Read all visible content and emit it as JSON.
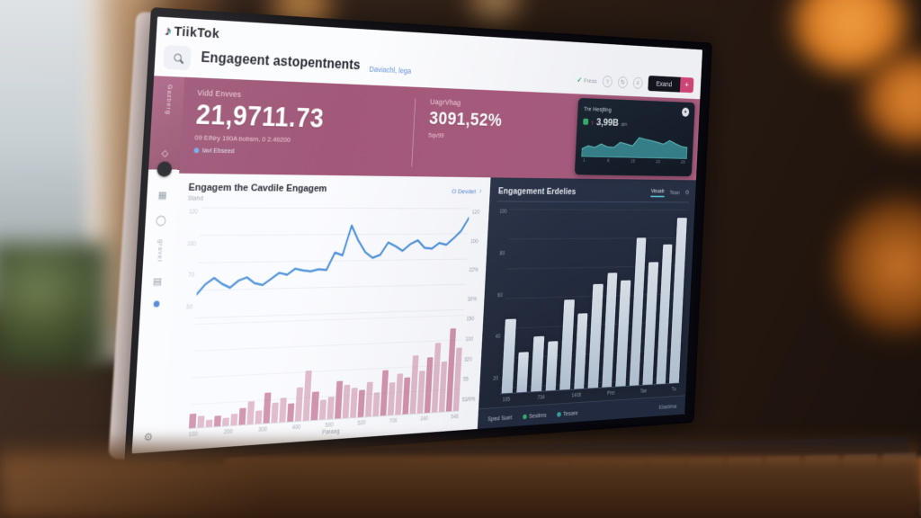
{
  "brand": {
    "name": "TiikTok",
    "note_glyph": "♪"
  },
  "header": {
    "search_value": "Engageent astopentnents",
    "search_hint": "Daviachl, lega",
    "status_check": "✓",
    "status_label": "Fress",
    "icon1": "?",
    "icon2": "↻",
    "icon3": "≡",
    "export_label": "Exand",
    "export_plus": "+"
  },
  "sidebar": {
    "vertical_label": "Gazberg",
    "diamond_glyph": "◇",
    "grid_glyph": "▦",
    "clock_glyph": "◯",
    "vertical_label2": "gravel",
    "list_glyph": "▤",
    "gear_glyph": "⚙"
  },
  "stats": {
    "left": {
      "label": "Vidd Envves",
      "value": "21,9711.73",
      "sub": "09 ElNry 190A bobsm, 0 2.49200",
      "badge": "lavl Ebseed"
    },
    "right": {
      "label": "UagrVhag",
      "value": "3091,52%",
      "sub": "5qv99"
    }
  },
  "mini_card": {
    "title": "Tre Hesjting",
    "circle_glyph": "✦",
    "delta": "↑",
    "value": "3,99B",
    "suffix": "am"
  },
  "line_card": {
    "title": "Engagem the Cavdile Engagem",
    "subtitle": "Stahd",
    "link": "O Devdet",
    "chevron": "›",
    "axis_title": "Paraag"
  },
  "dark_card": {
    "title": "Engagement Erdelies",
    "tab_active": "Veuab",
    "tab2": "Tean",
    "gear_glyph": "⚙"
  },
  "footer": {
    "left": "Sped Suet",
    "legend_green": "Seslims",
    "legend_teal": "Tesare",
    "right": "Elastima"
  },
  "colors": {
    "panel_pink": "#a85a7c",
    "line_blue": "#4a90d9",
    "bar_pink": "#c06a8d",
    "teal": "#3aa8a8",
    "green": "#35b36a",
    "button_pink": "#d8487a",
    "dark_card_bg": "#232c3f"
  },
  "chart_data": [
    {
      "type": "line",
      "title": "Engagem the Cavdile Engagem",
      "y_labels_left": [
        "120",
        "100",
        "70",
        "50"
      ],
      "y_labels_right": [
        "120",
        "100",
        "22%",
        "30%"
      ],
      "values": [
        20,
        30,
        36,
        30,
        26,
        33,
        36,
        30,
        28,
        34,
        40,
        38,
        44,
        42,
        41,
        43,
        42,
        60,
        57,
        88,
        72,
        60,
        54,
        57,
        70,
        66,
        61,
        68,
        72,
        64,
        63,
        69,
        67,
        74,
        82,
        96
      ],
      "ylim": [
        0,
        100
      ],
      "grid": true,
      "legend": "none"
    },
    {
      "type": "bar",
      "title": "Paraag",
      "x_labels": [
        "100",
        "200",
        "300",
        "400",
        "500",
        "520",
        "700",
        "340",
        "548"
      ],
      "y_labels_right": [
        "150",
        "100",
        "320",
        "55",
        "53/9%"
      ],
      "values": [
        14,
        11,
        7,
        10,
        8,
        11,
        16,
        22,
        13,
        30,
        20,
        24,
        18,
        33,
        50,
        28,
        20,
        22,
        38,
        33,
        30,
        27,
        35,
        24,
        46,
        33,
        42,
        38,
        60,
        44,
        57,
        72,
        52,
        86,
        66
      ],
      "ylim": [
        0,
        100
      ],
      "grid": true
    },
    {
      "type": "bar",
      "title": "Engagement Erdelies",
      "y_labels": [
        "100",
        "80",
        "60",
        "40",
        "20"
      ],
      "x_labels": [
        "105",
        "734",
        "1408",
        "Prel",
        "Tae",
        "Tu"
      ],
      "values": [
        40,
        22,
        30,
        27,
        50,
        42,
        58,
        64,
        60,
        84,
        70,
        80,
        95
      ],
      "ylim": [
        0,
        100
      ],
      "grid": true
    },
    {
      "type": "area",
      "title": "Tre Hesjting",
      "x_ticks": [
        "1",
        "8",
        "15",
        "22",
        "29"
      ],
      "values": [
        30,
        42,
        36,
        50,
        40,
        38,
        58,
        52,
        46,
        78,
        72,
        68,
        62,
        55,
        70,
        58,
        48,
        44
      ],
      "ylim": [
        0,
        100
      ]
    }
  ]
}
